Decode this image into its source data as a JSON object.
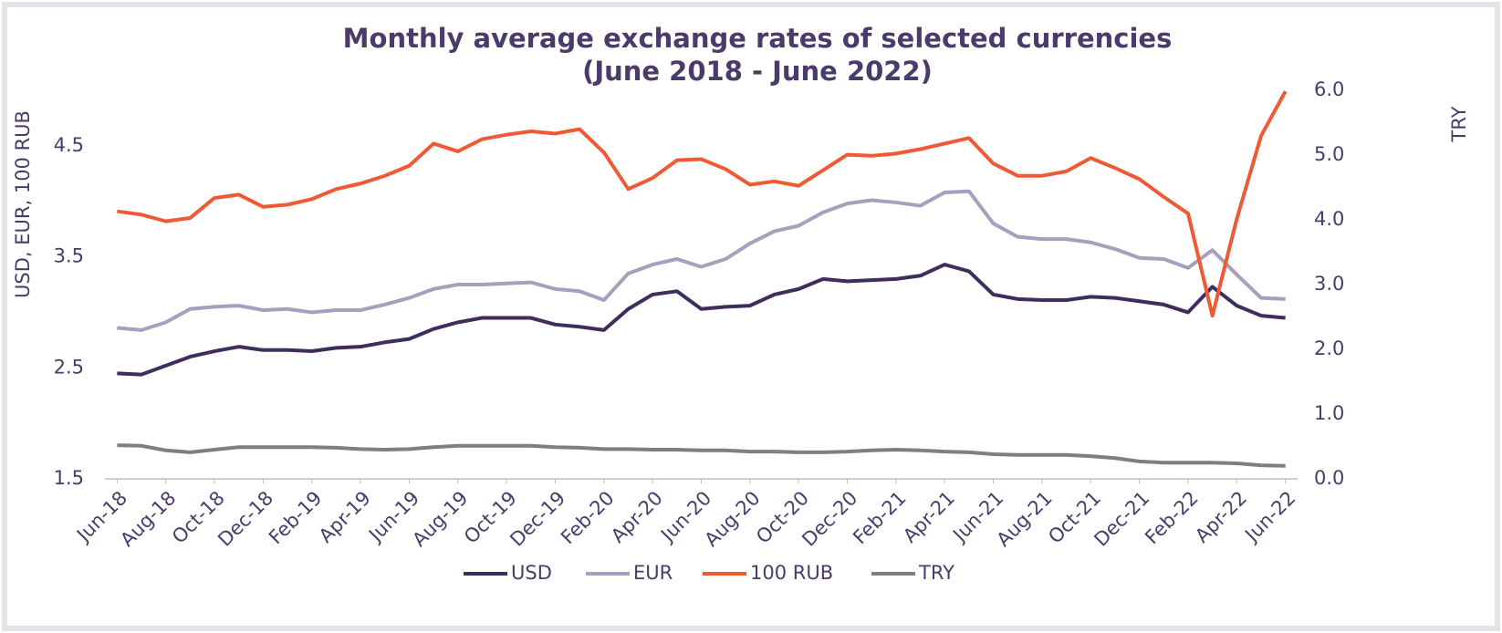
{
  "chart_data": {
    "type": "line",
    "title": "Monthly average exchange rates of selected currencies",
    "subtitle": "(June 2018 - June 2022)",
    "ylabel": "USD, EUR, 100 RUB",
    "y2label": "TRY",
    "categories": [
      "Jun-18",
      null,
      "Aug-18",
      null,
      "Oct-18",
      null,
      "Dec-18",
      null,
      "Feb-19",
      null,
      "Apr-19",
      null,
      "Jun-19",
      null,
      "Aug-19",
      null,
      "Oct-19",
      null,
      "Dec-19",
      null,
      "Feb-20",
      null,
      "Apr-20",
      null,
      "Jun-20",
      null,
      "Aug-20",
      null,
      "Oct-20",
      null,
      "Dec-20",
      null,
      "Feb-21",
      null,
      "Apr-21",
      null,
      "Jun-21",
      null,
      "Aug-21",
      null,
      "Oct-21",
      null,
      "Dec-21",
      null,
      "Feb-22",
      null,
      "Apr-22",
      null,
      "Jun-22"
    ],
    "series": [
      {
        "name": "USD",
        "color": "#3f2d5e",
        "axis": "y",
        "values": [
          2.45,
          2.44,
          2.52,
          2.6,
          2.65,
          2.69,
          2.66,
          2.66,
          2.65,
          2.68,
          2.69,
          2.73,
          2.76,
          2.85,
          2.91,
          2.95,
          2.95,
          2.95,
          2.89,
          2.87,
          2.84,
          3.03,
          3.16,
          3.19,
          3.03,
          3.05,
          3.06,
          3.16,
          3.21,
          3.3,
          3.28,
          3.29,
          3.3,
          3.33,
          3.43,
          3.37,
          3.16,
          3.12,
          3.11,
          3.11,
          3.14,
          3.13,
          3.1,
          3.07,
          3.0,
          3.23,
          3.06,
          2.97,
          2.95
        ]
      },
      {
        "name": "EUR",
        "color": "#a99ebd",
        "axis": "y",
        "values": [
          2.86,
          2.84,
          2.91,
          3.03,
          3.05,
          3.06,
          3.02,
          3.03,
          3.0,
          3.02,
          3.02,
          3.07,
          3.13,
          3.21,
          3.25,
          3.25,
          3.26,
          3.27,
          3.21,
          3.19,
          3.11,
          3.35,
          3.43,
          3.48,
          3.41,
          3.48,
          3.62,
          3.73,
          3.78,
          3.9,
          3.98,
          4.01,
          3.99,
          3.96,
          4.08,
          4.09,
          3.8,
          3.68,
          3.66,
          3.66,
          3.63,
          3.57,
          3.49,
          3.48,
          3.4,
          3.56,
          3.34,
          3.13,
          3.12
        ]
      },
      {
        "name": "100 RUB",
        "color": "#ef5a35",
        "axis": "y",
        "values": [
          3.91,
          3.88,
          3.82,
          3.85,
          4.03,
          4.06,
          3.95,
          3.97,
          4.02,
          4.11,
          4.16,
          4.23,
          4.32,
          4.52,
          4.45,
          4.56,
          4.6,
          4.63,
          4.61,
          4.65,
          4.44,
          4.11,
          4.21,
          4.37,
          4.38,
          4.29,
          4.15,
          4.18,
          4.14,
          4.28,
          4.42,
          4.41,
          4.43,
          4.47,
          4.52,
          4.57,
          4.34,
          4.23,
          4.23,
          4.27,
          4.39,
          4.3,
          4.2,
          4.04,
          3.89,
          2.97,
          3.84,
          4.59,
          4.99
        ]
      },
      {
        "name": "TRY",
        "color": "#7f7f7f",
        "axis": "y2",
        "values": [
          0.52,
          0.51,
          0.44,
          0.41,
          0.45,
          0.49,
          0.49,
          0.49,
          0.49,
          0.48,
          0.46,
          0.45,
          0.46,
          0.49,
          0.51,
          0.51,
          0.51,
          0.51,
          0.49,
          0.48,
          0.46,
          0.46,
          0.45,
          0.45,
          0.44,
          0.44,
          0.42,
          0.42,
          0.41,
          0.41,
          0.42,
          0.44,
          0.45,
          0.44,
          0.42,
          0.41,
          0.38,
          0.37,
          0.37,
          0.37,
          0.35,
          0.32,
          0.27,
          0.25,
          0.25,
          0.25,
          0.24,
          0.21,
          0.2
        ]
      }
    ],
    "ylim": [
      1.5,
      5.0
    ],
    "yticks": [
      1.5,
      2.5,
      3.5,
      4.5
    ],
    "y2lim": [
      0,
      6
    ],
    "y2ticks": [
      {
        "value": 0,
        "label": "0.0"
      },
      {
        "value": 1,
        "label": "1.0"
      },
      {
        "value": 2,
        "label": "2.0"
      },
      {
        "value": 3,
        "label": "3.0"
      },
      {
        "value": 4,
        "label": "4.0"
      },
      {
        "value": 5,
        "label": "5.0"
      },
      {
        "value": 6,
        "label": "6.0"
      }
    ],
    "grid": false,
    "legend": "bottom"
  }
}
